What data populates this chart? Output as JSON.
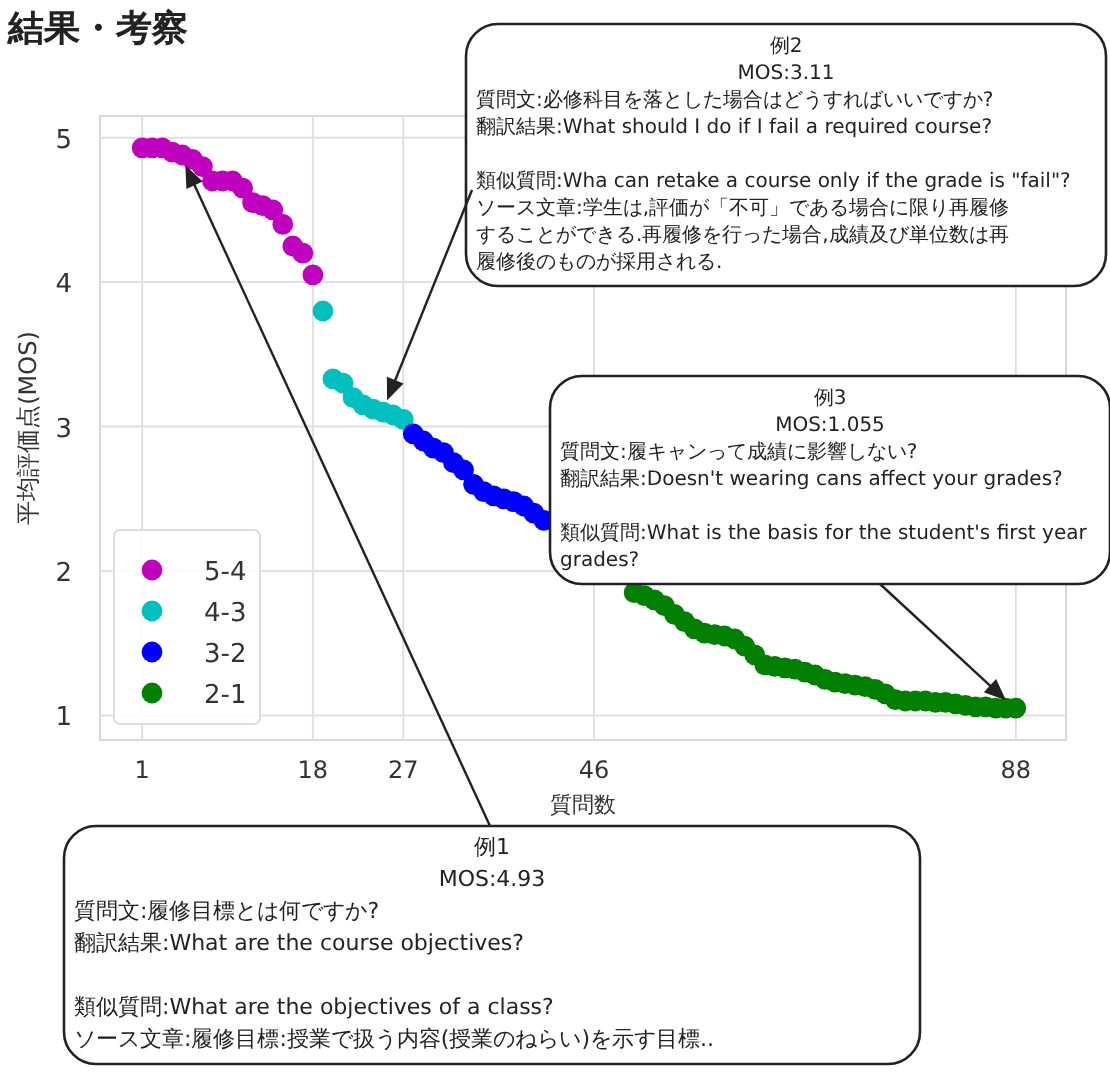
{
  "chart_data": {
    "type": "scatter",
    "title": "結果・考察",
    "xlabel": "質問数",
    "ylabel": "平均評価点(MOS)",
    "xlim": [
      -3.2,
      93
    ],
    "ylim": [
      0.83,
      5.15
    ],
    "xticks": [
      1,
      18,
      27,
      46,
      88
    ],
    "yticks": [
      1,
      2,
      3,
      4,
      5
    ],
    "grid": true,
    "legend": "bottom left",
    "marker": "circle",
    "series": [
      {
        "name": "5-4",
        "color": "#bf00bf",
        "x": [
          1,
          2,
          3,
          4,
          5,
          6,
          7,
          8,
          9,
          10,
          11,
          12,
          13,
          14,
          15,
          16,
          17,
          18
        ],
        "values": [
          4.93,
          4.93,
          4.93,
          4.9,
          4.88,
          4.85,
          4.8,
          4.7,
          4.7,
          4.7,
          4.65,
          4.55,
          4.53,
          4.5,
          4.4,
          4.25,
          4.2,
          4.05
        ]
      },
      {
        "name": "4-3",
        "color": "#00bfbf",
        "x": [
          19,
          20,
          21,
          22,
          23,
          24,
          25,
          26,
          27
        ],
        "values": [
          3.8,
          3.33,
          3.3,
          3.2,
          3.15,
          3.12,
          3.1,
          3.08,
          3.05
        ]
      },
      {
        "name": "3-2",
        "color": "#0000ff",
        "x": [
          28,
          29,
          30,
          31,
          32,
          33,
          34,
          35,
          36,
          37,
          38,
          39,
          40,
          41
        ],
        "values": [
          2.95,
          2.9,
          2.85,
          2.82,
          2.75,
          2.7,
          2.6,
          2.55,
          2.52,
          2.5,
          2.48,
          2.45,
          2.4,
          2.35
        ]
      },
      {
        "name": "2-1",
        "color": "#008000",
        "x": [
          50,
          51,
          52,
          53,
          54,
          55,
          56,
          57,
          58,
          59,
          60,
          61,
          62,
          63,
          64,
          65,
          66,
          67,
          68,
          69,
          70,
          71,
          72,
          73,
          74,
          75,
          76,
          77,
          78,
          79,
          80,
          81,
          82,
          83,
          84,
          85,
          86,
          87,
          88
        ],
        "values": [
          1.85,
          1.83,
          1.8,
          1.76,
          1.7,
          1.65,
          1.6,
          1.57,
          1.56,
          1.55,
          1.53,
          1.48,
          1.42,
          1.35,
          1.34,
          1.33,
          1.32,
          1.3,
          1.28,
          1.25,
          1.23,
          1.22,
          1.21,
          1.2,
          1.18,
          1.15,
          1.11,
          1.1,
          1.1,
          1.1,
          1.09,
          1.09,
          1.08,
          1.07,
          1.06,
          1.06,
          1.05,
          1.05,
          1.05
        ]
      }
    ],
    "annotations": [
      "例1",
      "MOS:4.93",
      "質問文:履修目標とは何ですか?",
      "翻訳結果:What are the course objectives?",
      "類似質問:What are the objectives of a class?",
      "ソース文章:履修目標:授業で扱う内容(授業のねらい)を示す目標..",
      "例2",
      "MOS:3.11",
      "質問文:必修科目を落とした場合はどうすればいいですか?",
      "翻訳結果:What should I do if I fail a required course?",
      "類似質問:Wha can retake a course only if the grade is \"fail\"?",
      "ソース文章:学生は,評価が「不可」である場合に限り再履修",
      "することができる.再履修を行った場合,成績及び単位数は再",
      "履修後のものが採用される.",
      "例3",
      "MOS:1.055",
      "質問文:履キャンって成績に影響しない?",
      "翻訳結果:Doesn't wearing cans affect your grades?",
      "類似質問:What is the basis for the student's first year",
      "grades?"
    ]
  }
}
